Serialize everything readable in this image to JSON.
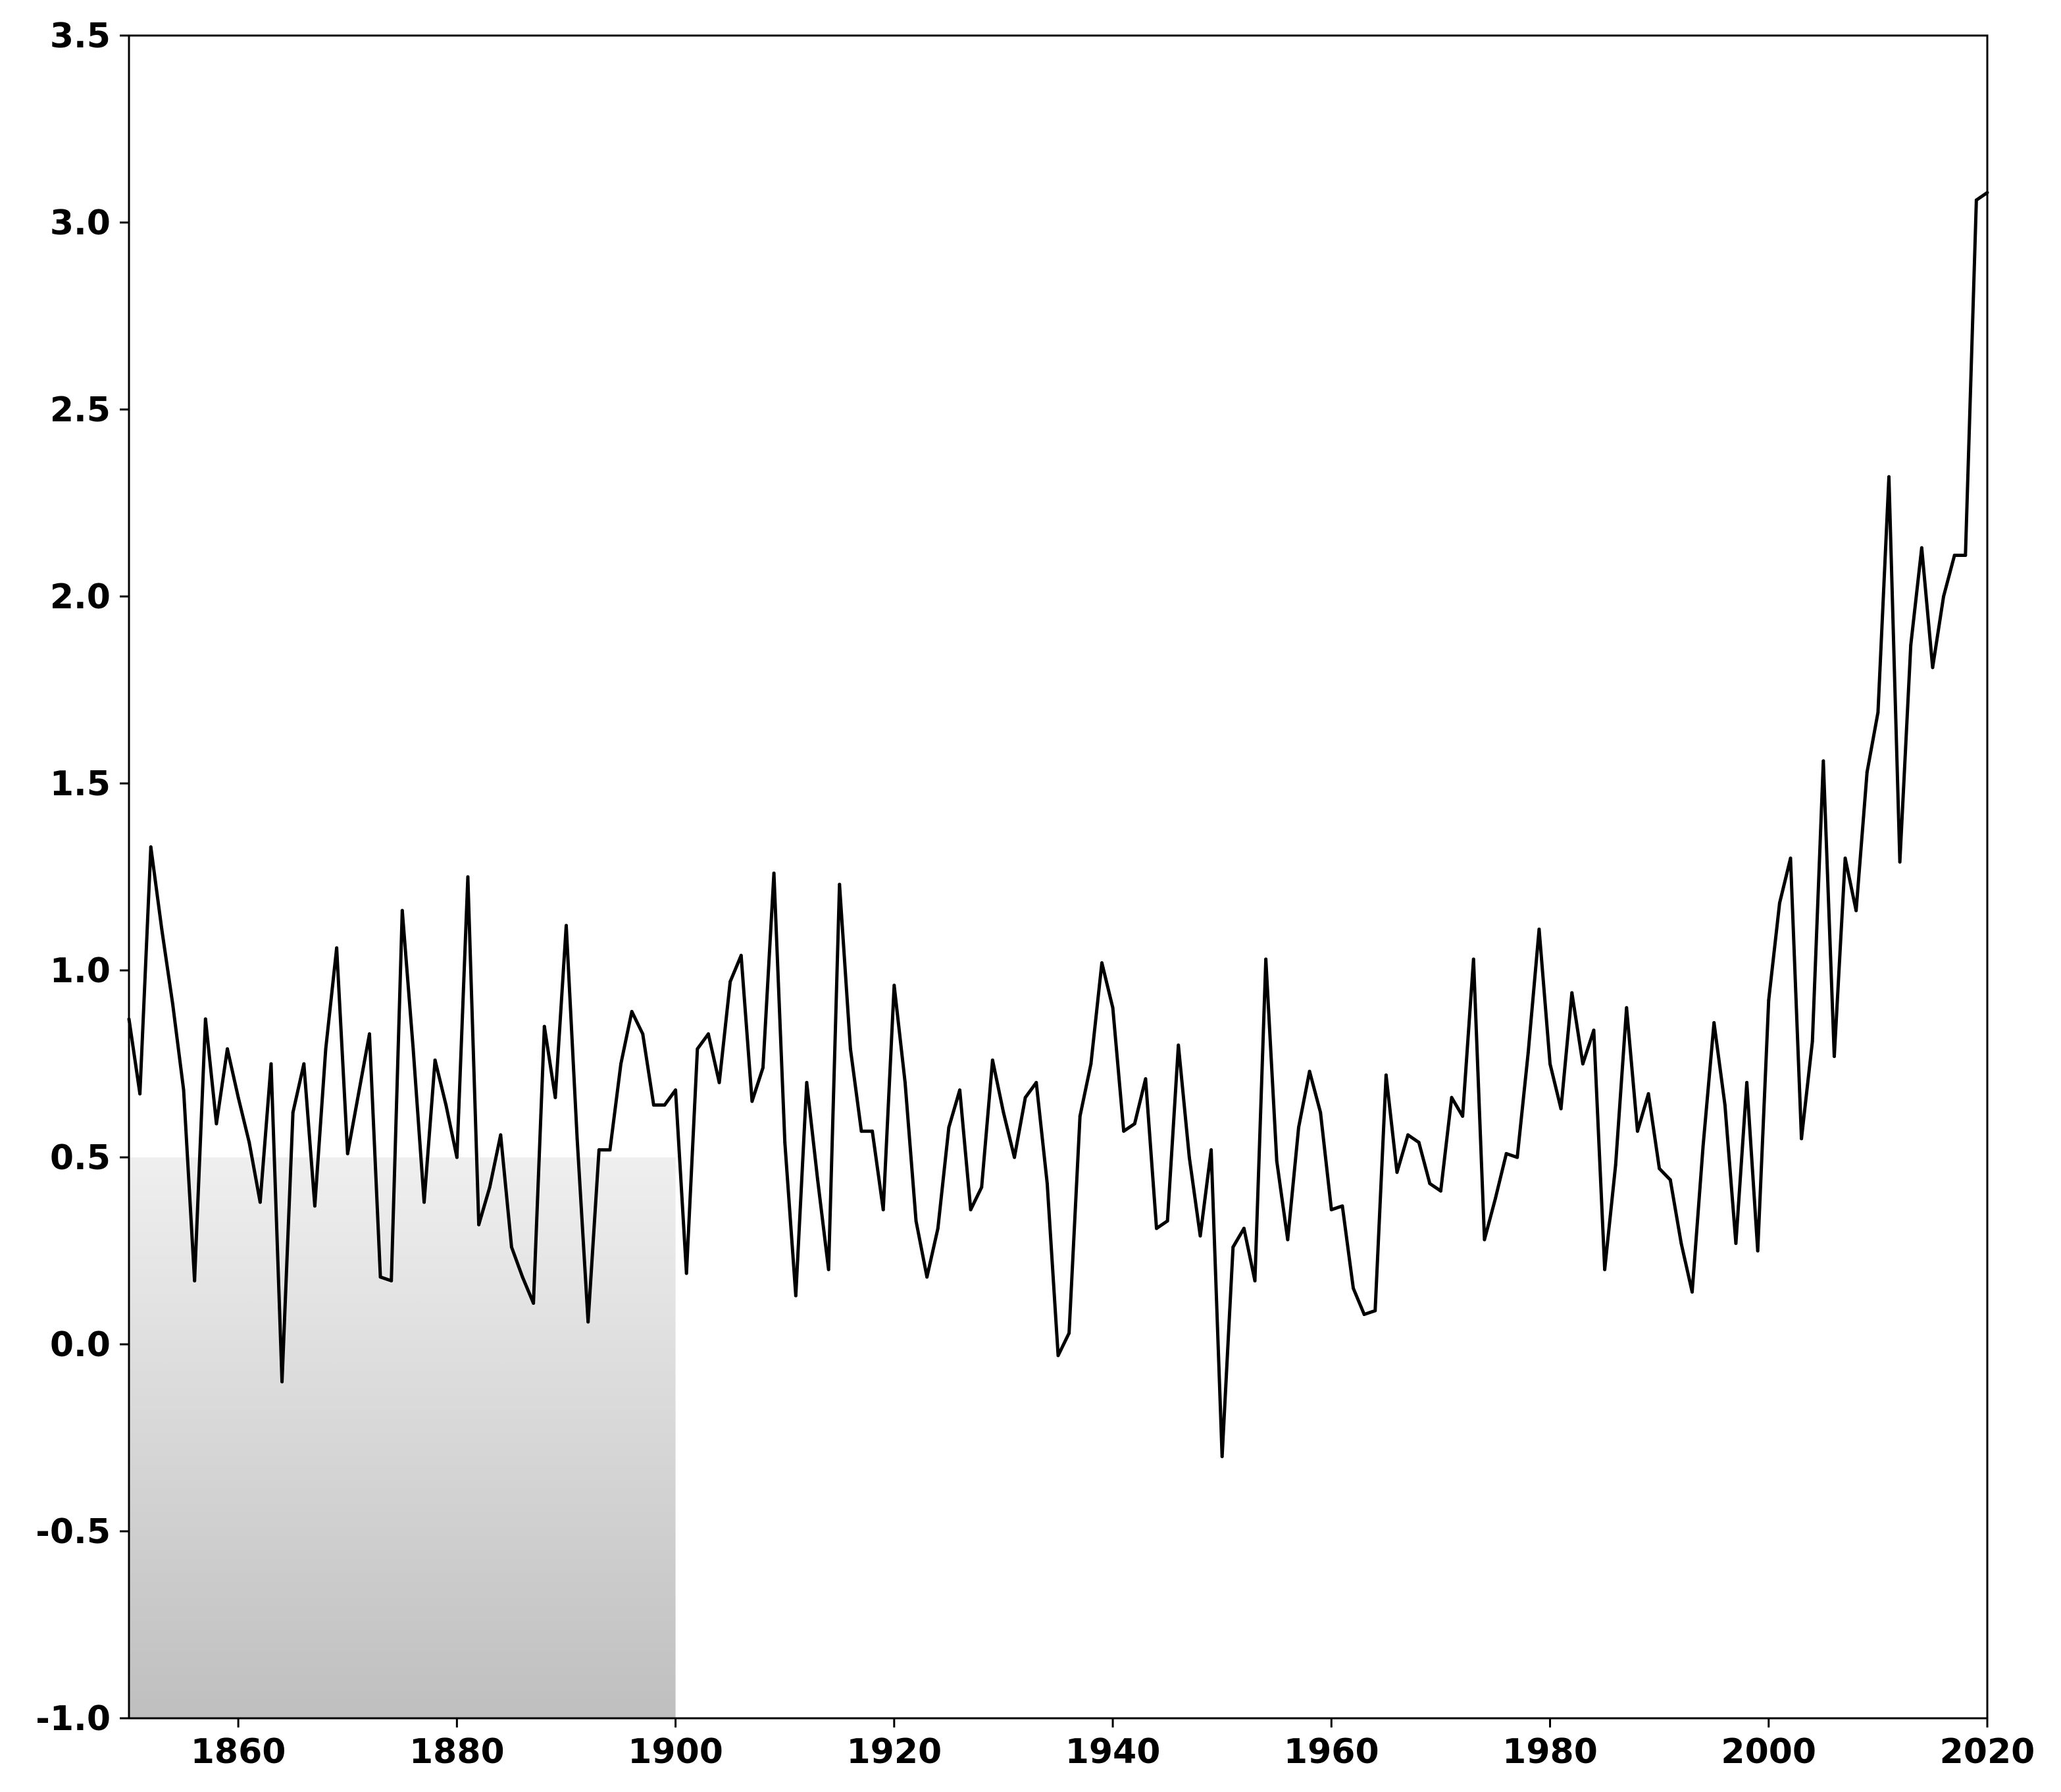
{
  "chart_data": {
    "type": "line",
    "title": "",
    "xlabel": "",
    "ylabel": "",
    "xlim": [
      1850,
      2020
    ],
    "ylim": [
      -1.0,
      3.5
    ],
    "grid": false,
    "x_ticks": [
      1860,
      1880,
      1900,
      1920,
      1940,
      1960,
      1980,
      2000,
      2020
    ],
    "x_tick_labels": [
      "1860",
      "1880",
      "1900",
      "1920",
      "1940",
      "1960",
      "1980",
      "2000",
      "2020"
    ],
    "y_ticks": [
      -1.0,
      -0.5,
      0.0,
      0.5,
      1.0,
      1.5,
      2.0,
      2.5,
      3.0,
      3.5
    ],
    "y_tick_labels": [
      "-1.0",
      "-0.5",
      "0.0",
      "0.5",
      "1.0",
      "1.5",
      "2.0",
      "2.5",
      "3.0",
      "3.5"
    ],
    "shaded_region": {
      "x_range": [
        1850,
        1900
      ],
      "y_range": [
        -1.0,
        0.5
      ],
      "color_top": "#efefef",
      "color_bottom": "#bfbfbf"
    },
    "series": [
      {
        "color": "#000000",
        "x": [
          1850,
          1851,
          1852,
          1853,
          1854,
          1855,
          1856,
          1857,
          1858,
          1859,
          1860,
          1861,
          1862,
          1863,
          1864,
          1865,
          1866,
          1867,
          1868,
          1869,
          1870,
          1871,
          1872,
          1873,
          1874,
          1875,
          1876,
          1877,
          1878,
          1879,
          1880,
          1881,
          1882,
          1883,
          1884,
          1885,
          1886,
          1887,
          1888,
          1889,
          1890,
          1891,
          1892,
          1893,
          1894,
          1895,
          1896,
          1897,
          1898,
          1899,
          1900,
          1901,
          1902,
          1903,
          1904,
          1905,
          1906,
          1907,
          1908,
          1909,
          1910,
          1911,
          1912,
          1913,
          1914,
          1915,
          1916,
          1917,
          1918,
          1919,
          1920,
          1921,
          1922,
          1923,
          1924,
          1925,
          1926,
          1927,
          1928,
          1929,
          1930,
          1931,
          1932,
          1933,
          1934,
          1935,
          1936,
          1937,
          1938,
          1939,
          1940,
          1941,
          1942,
          1943,
          1944,
          1945,
          1946,
          1947,
          1948,
          1949,
          1950,
          1951,
          1952,
          1953,
          1954,
          1955,
          1956,
          1957,
          1958,
          1959,
          1960,
          1961,
          1962,
          1963,
          1964,
          1965,
          1966,
          1967,
          1968,
          1969,
          1970,
          1971,
          1972,
          1973,
          1974,
          1975,
          1976,
          1977,
          1978,
          1979,
          1980,
          1981,
          1982,
          1983,
          1984,
          1985,
          1986,
          1987,
          1988,
          1989,
          1990,
          1991,
          1992,
          1993,
          1994,
          1995,
          1996,
          1997,
          1998,
          1999,
          2000,
          2001,
          2002,
          2003,
          2004,
          2005,
          2006,
          2007,
          2008,
          2009,
          2010,
          2011,
          2012,
          2013,
          2014,
          2015,
          2016,
          2017,
          2018,
          2019,
          2020
        ],
        "y": [
          0.87,
          0.67,
          1.33,
          1.11,
          0.91,
          0.68,
          0.17,
          0.87,
          0.59,
          0.79,
          0.66,
          0.54,
          0.38,
          0.75,
          -0.1,
          0.62,
          0.75,
          0.37,
          0.79,
          1.06,
          0.51,
          0.67,
          0.83,
          0.18,
          0.17,
          1.16,
          0.79,
          0.38,
          0.76,
          0.64,
          0.5,
          1.25,
          0.32,
          0.42,
          0.56,
          0.26,
          0.18,
          0.11,
          0.85,
          0.66,
          1.12,
          0.55,
          0.06,
          0.52,
          0.52,
          0.75,
          0.89,
          0.83,
          0.64,
          0.64,
          0.68,
          0.19,
          0.79,
          0.83,
          0.7,
          0.97,
          1.04,
          0.65,
          0.74,
          1.26,
          0.54,
          0.13,
          0.7,
          0.44,
          0.2,
          1.23,
          0.79,
          0.57,
          0.57,
          0.36,
          0.96,
          0.7,
          0.33,
          0.18,
          0.31,
          0.58,
          0.68,
          0.36,
          0.42,
          0.76,
          0.62,
          0.5,
          0.66,
          0.7,
          0.43,
          -0.03,
          0.03,
          0.61,
          0.75,
          1.02,
          0.9,
          0.57,
          0.59,
          0.71,
          0.31,
          0.33,
          0.8,
          0.5,
          0.29,
          0.52,
          -0.3,
          0.26,
          0.31,
          0.17,
          1.03,
          0.49,
          0.28,
          0.58,
          0.73,
          0.62,
          0.36,
          0.37,
          0.15,
          0.08,
          0.09,
          0.72,
          0.46,
          0.56,
          0.54,
          0.43,
          0.41,
          0.66,
          0.61,
          1.03,
          0.28,
          0.39,
          0.51,
          0.5,
          0.78,
          1.11,
          0.75,
          0.63,
          0.94,
          0.75,
          0.84,
          0.2,
          0.48,
          0.9,
          0.57,
          0.67,
          0.47,
          0.44,
          0.27,
          0.14,
          0.53,
          0.86,
          0.64,
          0.27,
          0.7,
          0.25,
          0.92,
          1.18,
          1.3,
          0.55,
          0.81,
          1.56,
          0.77,
          1.3,
          1.16,
          1.53,
          1.69,
          2.32,
          1.29,
          1.87,
          2.13,
          1.81,
          2.0,
          2.11,
          2.11,
          3.06,
          3.08
        ]
      }
    ]
  }
}
